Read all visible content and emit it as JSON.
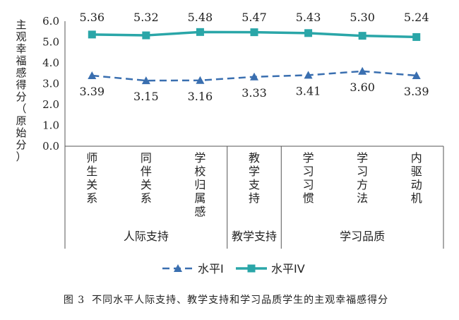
{
  "chart_data": {
    "type": "line",
    "categories": [
      "师生关系",
      "同伴关系",
      "学校归属感",
      "教学支持",
      "学习习惯",
      "学习方法",
      "内驱动机"
    ],
    "series": [
      {
        "name": "水平I",
        "values": [
          3.39,
          3.15,
          3.16,
          3.33,
          3.41,
          3.6,
          3.39
        ],
        "color": "#3a6fb0",
        "style": "dashed",
        "marker": "triangle"
      },
      {
        "name": "水平IV",
        "values": [
          5.36,
          5.32,
          5.48,
          5.47,
          5.43,
          5.3,
          5.24
        ],
        "color": "#2aa6a8",
        "style": "solid",
        "marker": "square"
      }
    ],
    "value_labels": {
      "level1": [
        "3.39",
        "3.15",
        "3.16",
        "3.33",
        "3.41",
        "3.60",
        "3.39"
      ],
      "level4": [
        "5.36",
        "5.32",
        "5.48",
        "5.47",
        "5.43",
        "5.30",
        "5.24"
      ]
    },
    "groups": [
      {
        "label": "人际支持",
        "span": 3
      },
      {
        "label": "教学支持",
        "span": 1
      },
      {
        "label": "学习品质",
        "span": 3
      }
    ],
    "ylabel": "主观幸福感得分（原始分）",
    "yticks": [
      "0.0",
      "1.0",
      "2.0",
      "3.0",
      "4.0",
      "5.0",
      "6.0"
    ],
    "ylim": [
      0,
      6
    ],
    "grid": false,
    "legend_position": "bottom"
  },
  "caption": {
    "number": "图 3",
    "text": "不同水平人际支持、教学支持和学习品质学生的主观幸福感得分"
  }
}
